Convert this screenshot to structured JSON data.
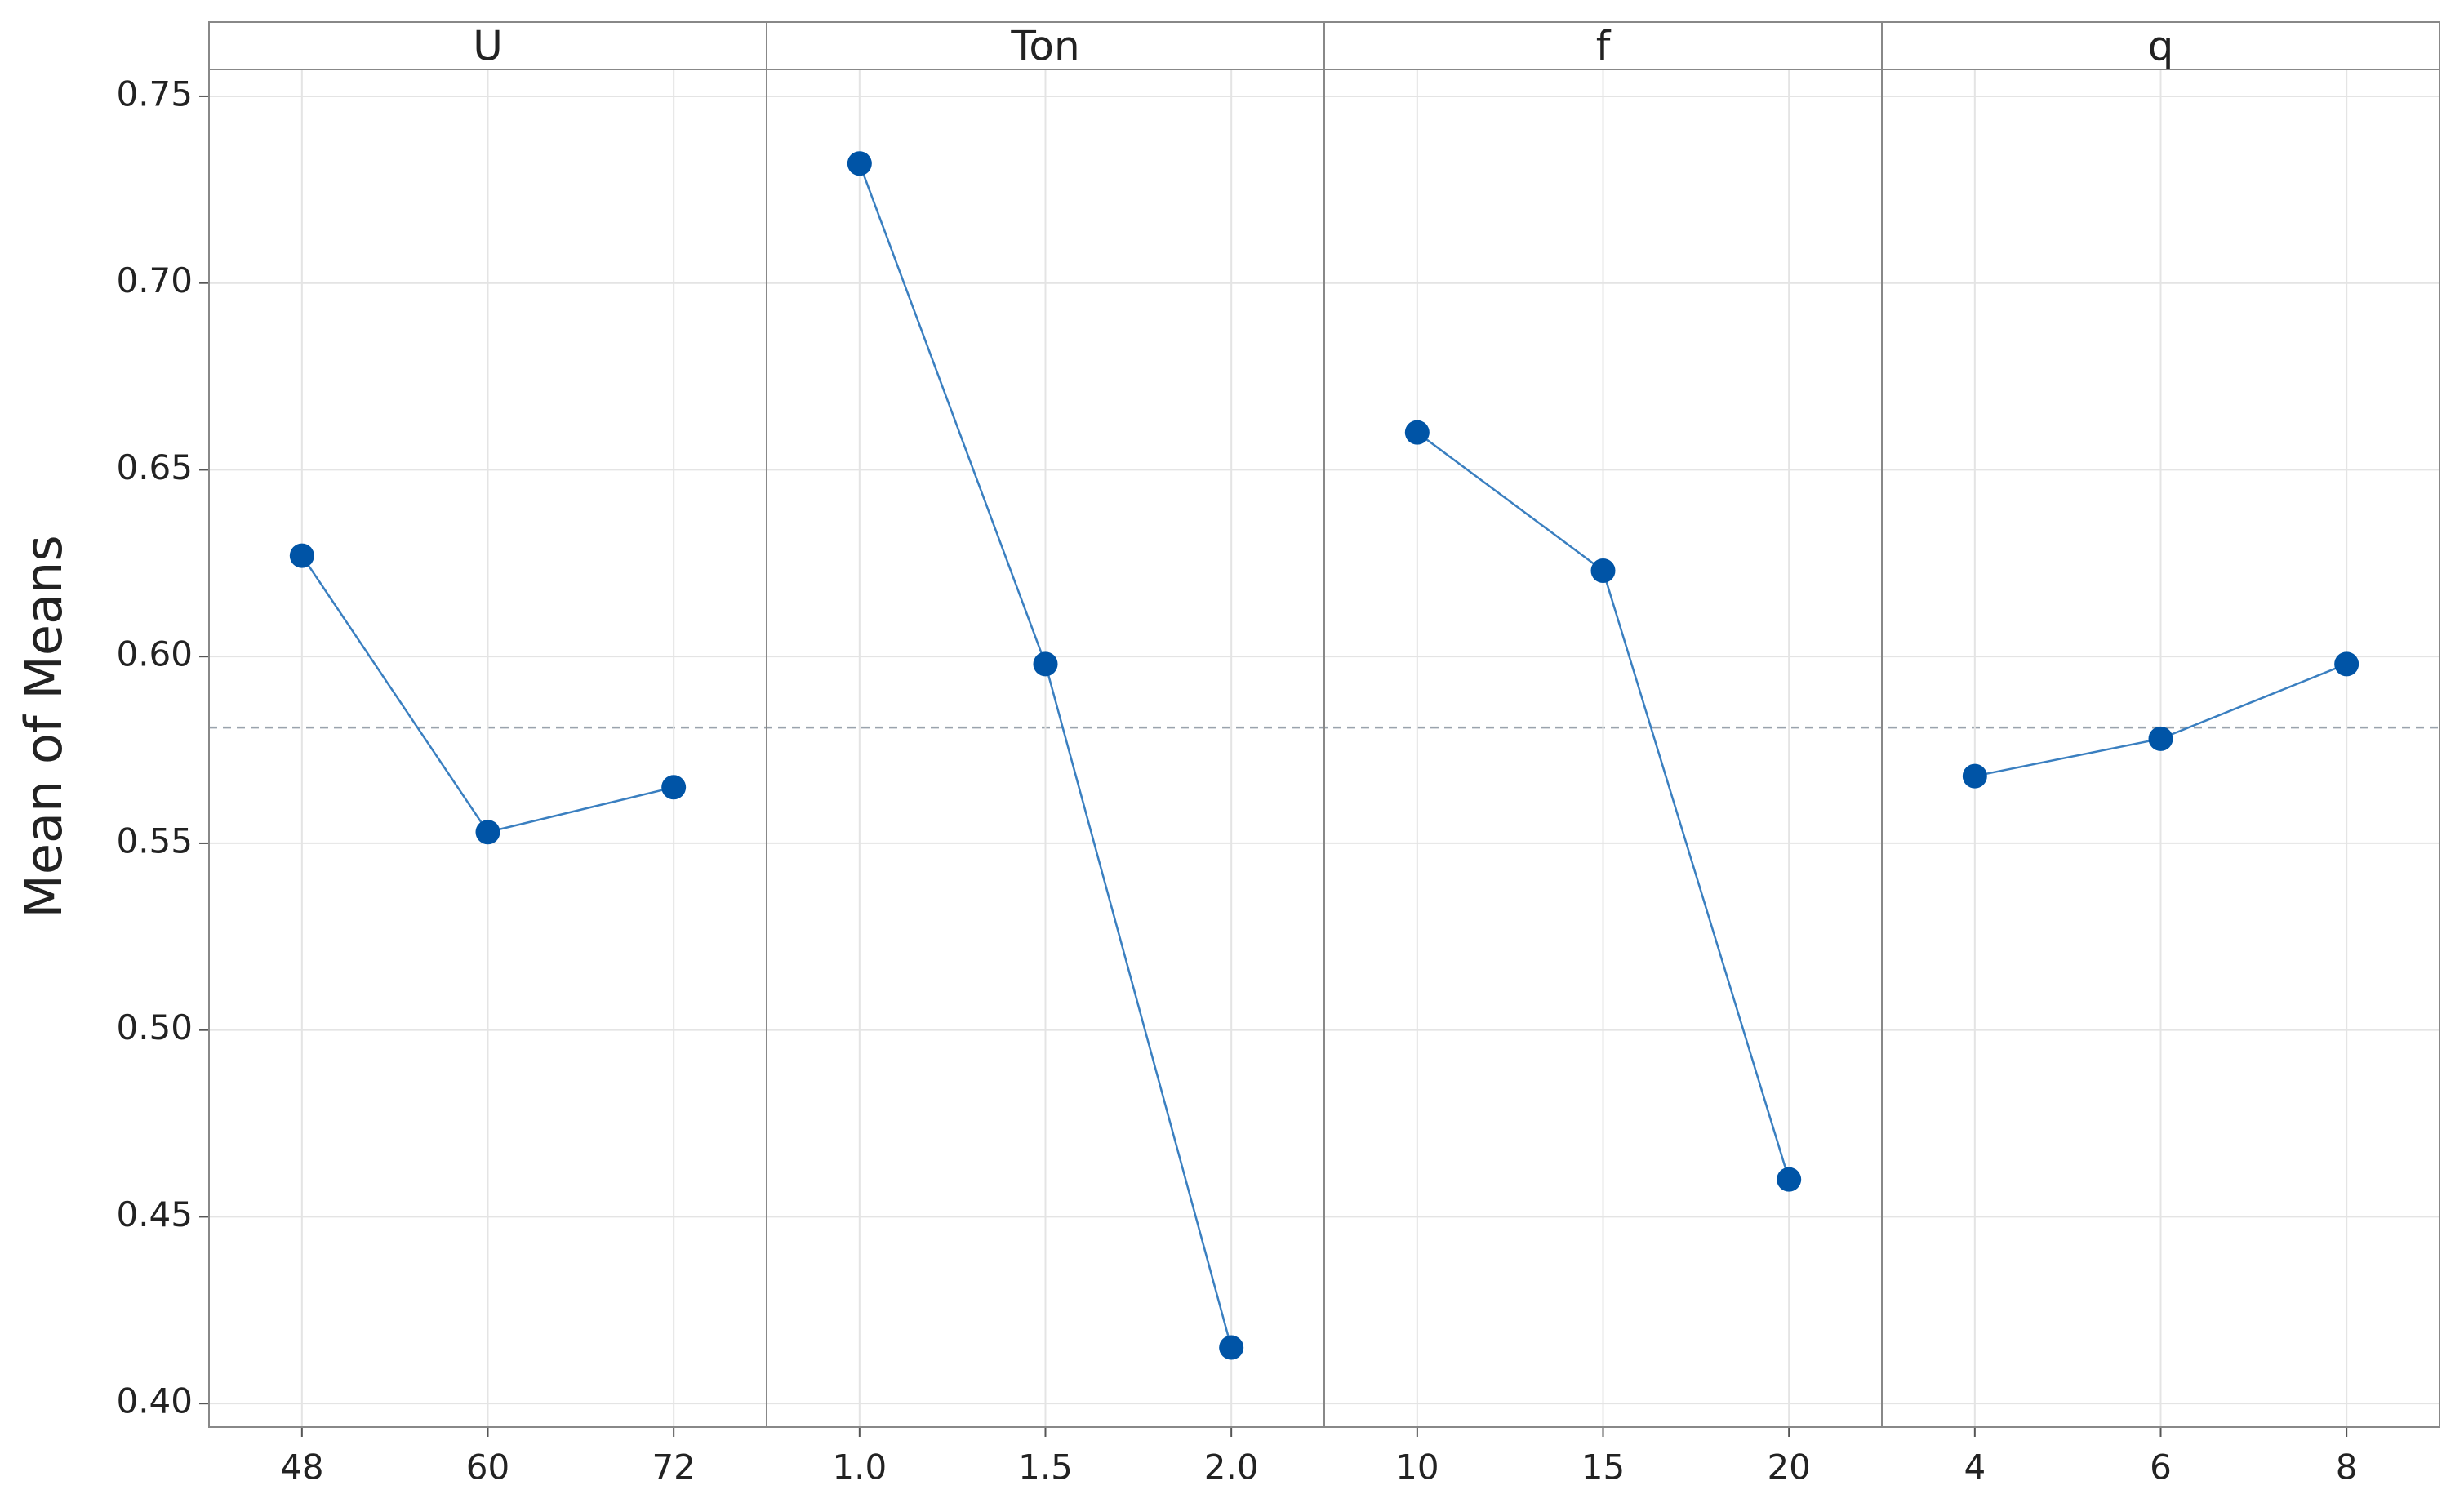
{
  "chart_data": {
    "type": "line",
    "ylabel": "Mean of Means",
    "color": "#0054a6",
    "line_color": "#3a7fc0",
    "grid": true,
    "reference_line": 0.581,
    "ylim": [
      0.3937,
      0.7572
    ],
    "yticks": [
      {
        "value": 0.4,
        "label": "0.40"
      },
      {
        "value": 0.45,
        "label": "0.45"
      },
      {
        "value": 0.5,
        "label": "0.50"
      },
      {
        "value": 0.55,
        "label": "0.55"
      },
      {
        "value": 0.6,
        "label": "0.60"
      },
      {
        "value": 0.65,
        "label": "0.65"
      },
      {
        "value": 0.7,
        "label": "0.70"
      },
      {
        "value": 0.75,
        "label": "0.75"
      }
    ],
    "panels": [
      {
        "title": "U",
        "categories": [
          "48",
          "60",
          "72"
        ],
        "values": [
          0.627,
          0.553,
          0.565
        ]
      },
      {
        "title": "Ton",
        "categories": [
          "1.0",
          "1.5",
          "2.0"
        ],
        "values": [
          0.732,
          0.598,
          0.415
        ]
      },
      {
        "title": "f",
        "categories": [
          "10",
          "15",
          "20"
        ],
        "values": [
          0.66,
          0.623,
          0.46
        ]
      },
      {
        "title": "q",
        "categories": [
          "4",
          "6",
          "8"
        ],
        "values": [
          0.568,
          0.578,
          0.598
        ]
      }
    ]
  }
}
